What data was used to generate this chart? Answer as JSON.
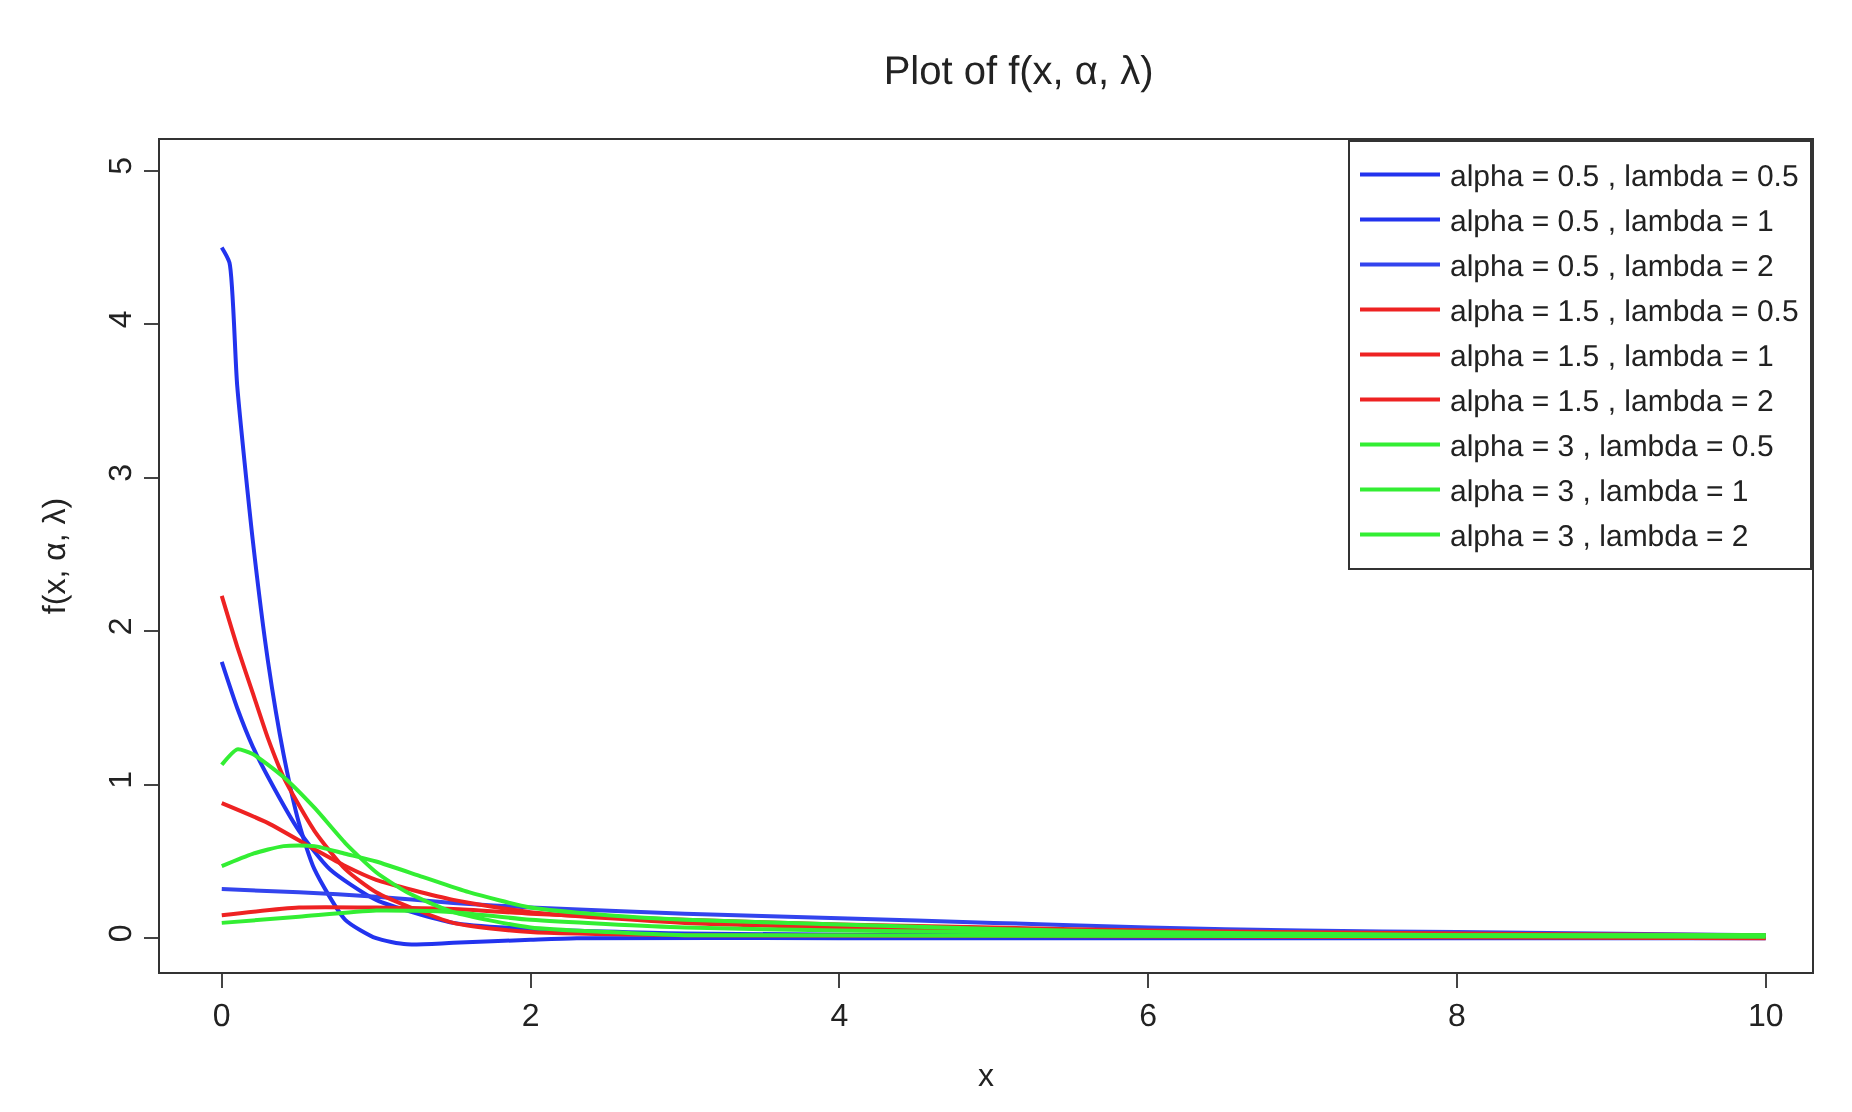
{
  "chart_data": {
    "type": "line",
    "title": "Plot of f(x, α, λ)",
    "xlabel": "x",
    "ylabel": "f(x, α, λ)",
    "xlim": [
      -0.4,
      10.3
    ],
    "ylim": [
      -0.22,
      5.2
    ],
    "xticks": [
      0,
      2,
      4,
      6,
      8,
      10
    ],
    "yticks": [
      0,
      1,
      2,
      3,
      4,
      5
    ],
    "legend": "top right",
    "marker": "none",
    "line_style": "solid",
    "series": [
      {
        "name": "alpha = 0.5 , lambda = 0.5",
        "color": "#2233ee",
        "x": [
          0,
          0.05,
          0.1,
          0.2,
          0.3,
          0.4,
          0.5,
          0.6,
          0.8,
          1.0,
          1.2,
          1.5,
          2,
          2.3,
          4,
          6,
          8,
          10
        ],
        "values": [
          4.5,
          4.4,
          3.6,
          2.6,
          1.8,
          1.2,
          0.75,
          0.45,
          0.12,
          0.0,
          -0.04,
          -0.03,
          -0.01,
          0.0,
          0.0,
          0.0,
          0.0,
          0.0
        ]
      },
      {
        "name": "alpha = 0.5 , lambda = 1",
        "color": "#2233ee",
        "x": [
          0,
          0.1,
          0.2,
          0.3,
          0.5,
          0.7,
          1.0,
          1.5,
          2,
          3,
          5,
          10
        ],
        "values": [
          1.8,
          1.5,
          1.25,
          1.05,
          0.7,
          0.45,
          0.25,
          0.1,
          0.06,
          0.03,
          0.02,
          0.01
        ]
      },
      {
        "name": "alpha = 0.5 , lambda = 2",
        "color": "#3344ee",
        "x": [
          0,
          0.5,
          1,
          1.5,
          2,
          3,
          4,
          5,
          6,
          7,
          8,
          10
        ],
        "values": [
          0.32,
          0.3,
          0.27,
          0.23,
          0.2,
          0.16,
          0.13,
          0.1,
          0.07,
          0.05,
          0.04,
          0.02
        ]
      },
      {
        "name": "alpha = 1.5 , lambda = 0.5",
        "color": "#ee2222",
        "x": [
          0,
          0.1,
          0.2,
          0.3,
          0.4,
          0.6,
          0.8,
          1,
          1.5,
          2,
          3,
          10
        ],
        "values": [
          2.23,
          1.9,
          1.6,
          1.3,
          1.05,
          0.7,
          0.45,
          0.3,
          0.1,
          0.04,
          0.02,
          0.0
        ]
      },
      {
        "name": "alpha = 1.5 , lambda = 1",
        "color": "#ee2222",
        "x": [
          0,
          0.3,
          0.6,
          0.8,
          1,
          1.5,
          2,
          3,
          4,
          5,
          6,
          8,
          10
        ],
        "values": [
          0.88,
          0.75,
          0.58,
          0.47,
          0.38,
          0.25,
          0.17,
          0.1,
          0.07,
          0.05,
          0.03,
          0.02,
          0.01
        ]
      },
      {
        "name": "alpha = 1.5 , lambda = 2",
        "color": "#ee2222",
        "x": [
          0,
          0.5,
          1,
          1.5,
          2,
          3,
          4,
          5,
          6,
          8,
          10
        ],
        "values": [
          0.15,
          0.2,
          0.2,
          0.19,
          0.16,
          0.12,
          0.09,
          0.07,
          0.05,
          0.03,
          0.02
        ]
      },
      {
        "name": "alpha = 3 , lambda = 0.5",
        "color": "#33ee33",
        "x": [
          0,
          0.1,
          0.2,
          0.4,
          0.6,
          0.8,
          1,
          1.2,
          1.5,
          2,
          2.5,
          3,
          10
        ],
        "values": [
          1.13,
          1.23,
          1.2,
          1.05,
          0.85,
          0.62,
          0.43,
          0.3,
          0.17,
          0.07,
          0.04,
          0.02,
          0.01
        ]
      },
      {
        "name": "alpha = 3 , lambda = 1",
        "color": "#33ee33",
        "x": [
          0,
          0.2,
          0.4,
          0.6,
          0.8,
          1,
          1.3,
          1.6,
          2,
          2.5,
          3,
          4,
          5,
          6,
          8,
          10
        ],
        "values": [
          0.47,
          0.55,
          0.6,
          0.6,
          0.55,
          0.5,
          0.4,
          0.3,
          0.2,
          0.15,
          0.12,
          0.09,
          0.06,
          0.04,
          0.02,
          0.02
        ]
      },
      {
        "name": "alpha = 3 , lambda = 2",
        "color": "#33ee33",
        "x": [
          0,
          0.5,
          1,
          1.5,
          2,
          3,
          4,
          6,
          8,
          10
        ],
        "values": [
          0.1,
          0.14,
          0.18,
          0.17,
          0.12,
          0.07,
          0.05,
          0.03,
          0.02,
          0.02
        ]
      }
    ]
  }
}
